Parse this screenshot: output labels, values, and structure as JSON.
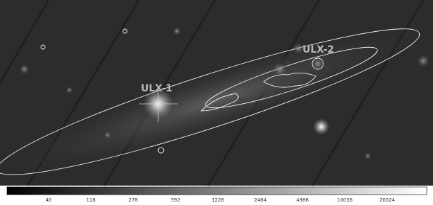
{
  "image": {
    "labels": [
      "ULX-1",
      "ULX-2"
    ]
  },
  "colorbar": {
    "ticks": [
      40,
      118,
      278,
      592,
      1228,
      2484,
      4986,
      10036,
      20024
    ]
  }
}
